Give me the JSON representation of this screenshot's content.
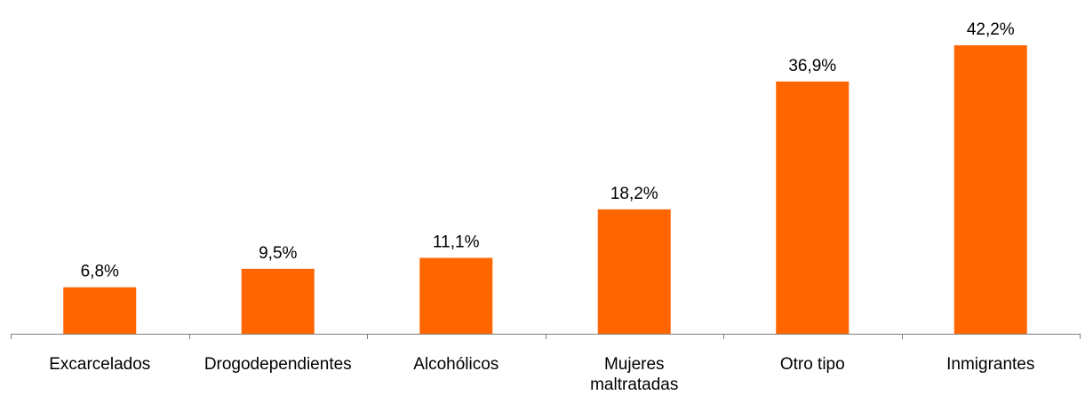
{
  "chart_data": {
    "type": "bar",
    "title": "",
    "xlabel": "",
    "ylabel": "",
    "categories": [
      [
        "Excarcelados"
      ],
      [
        "Drogodependientes"
      ],
      [
        "Alcohólicos"
      ],
      [
        "Mujeres",
        "maltratadas"
      ],
      [
        "Otro tipo"
      ],
      [
        "Inmigrantes"
      ]
    ],
    "values": [
      6.8,
      9.5,
      11.1,
      18.2,
      36.9,
      42.2
    ],
    "data_labels": [
      "6,8%",
      "9,5%",
      "11,1%",
      "18,2%",
      "36,9%",
      "42,2%"
    ],
    "ylim": [
      0,
      42.2
    ],
    "grid": false,
    "legend": "none",
    "bar_color": "#FF6600",
    "axis_color": "#808080"
  }
}
